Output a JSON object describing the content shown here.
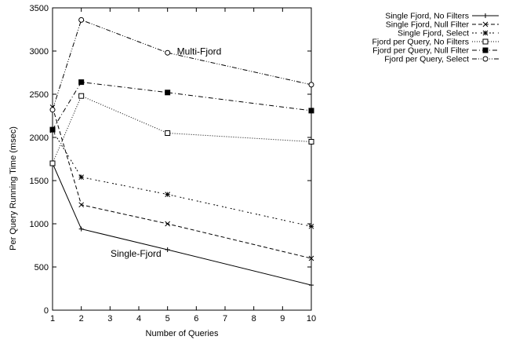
{
  "chart_data": {
    "type": "line",
    "title": "",
    "xlabel": "Number of Queries",
    "ylabel": "Per Query Running Time (msec)",
    "xlim": [
      1,
      10
    ],
    "ylim": [
      0,
      3500
    ],
    "xticks": [
      1,
      2,
      3,
      4,
      5,
      6,
      7,
      8,
      9,
      10
    ],
    "yticks": [
      0,
      500,
      1000,
      1500,
      2000,
      2500,
      3000,
      3500
    ],
    "grid": false,
    "legend_position": "top-right, outside plot",
    "annotations": [
      {
        "text": "Multi-Fjord",
        "x": 6.1,
        "y": 2960
      },
      {
        "text": "Single-Fjord",
        "x": 3.9,
        "y": 620
      }
    ],
    "series": [
      {
        "name": "Single Fjord, No Filters",
        "marker": "plus",
        "dash": "solid",
        "x": [
          1,
          2,
          5,
          10
        ],
        "values": [
          1700,
          940,
          700,
          290
        ]
      },
      {
        "name": "Single Fjord, Null Filter",
        "marker": "cross",
        "dash": "dashed",
        "x": [
          1,
          2,
          5,
          10
        ],
        "values": [
          2350,
          1220,
          1000,
          600
        ]
      },
      {
        "name": "Single Fjord, Select",
        "marker": "star",
        "dash": "dotted-dashed",
        "x": [
          1,
          2,
          5,
          10
        ],
        "values": [
          2080,
          1540,
          1340,
          970
        ]
      },
      {
        "name": "Fjord per Query, No Filters",
        "marker": "open-square",
        "dash": "dotted",
        "x": [
          1,
          2,
          5,
          10
        ],
        "values": [
          1700,
          2480,
          2050,
          1950
        ]
      },
      {
        "name": "Fjord per Query, Null Filter",
        "marker": "filled-square",
        "dash": "dash-dot",
        "x": [
          1,
          2,
          5,
          10
        ],
        "values": [
          2090,
          2640,
          2520,
          2310
        ]
      },
      {
        "name": "Fjord per Query, Select",
        "marker": "open-circle",
        "dash": "dash-dot-dot",
        "x": [
          1,
          2,
          5,
          10
        ],
        "values": [
          2320,
          3360,
          2980,
          2610
        ]
      }
    ]
  }
}
